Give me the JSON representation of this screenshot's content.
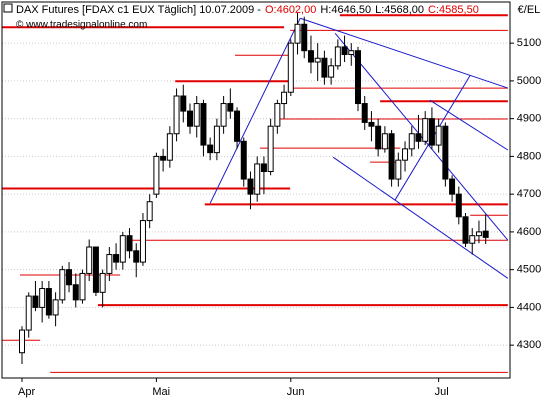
{
  "chart_data": {
    "type": "candlestick",
    "title": "DAX Futures [FDAX c1 EUX  Täglich] 10.07.2009 -",
    "ohlc_labels": [
      "O:4602,00",
      "H:4646,50",
      "L:4568,00",
      "C:4585,50"
    ],
    "watermark": "© www.tradesignalonline.com",
    "unit": "€/EL",
    "categories": [
      "Apr",
      null,
      null,
      null,
      null,
      null,
      null,
      null,
      null,
      null,
      null,
      null,
      null,
      null,
      null,
      null,
      null,
      null,
      null,
      null,
      "Mai",
      null,
      null,
      null,
      null,
      null,
      null,
      null,
      null,
      null,
      null,
      null,
      null,
      null,
      null,
      null,
      null,
      null,
      null,
      null,
      "Jun",
      null,
      null,
      null,
      null,
      null,
      null,
      null,
      null,
      null,
      null,
      null,
      null,
      null,
      null,
      null,
      null,
      null,
      null,
      null,
      null,
      null,
      "Jul",
      null,
      null,
      null,
      null,
      null,
      null,
      null
    ],
    "open": [
      4280,
      4340,
      4430,
      4400,
      4450,
      4380,
      4420,
      4500,
      4460,
      4420,
      4490,
      4560,
      4440,
      4490,
      4540,
      4520,
      4590,
      4550,
      4520,
      4630,
      4700,
      4800,
      4790,
      4860,
      4960,
      4920,
      4880,
      4940,
      4830,
      4810,
      4880,
      4940,
      4920,
      4840,
      4740,
      4700,
      4780,
      4760,
      4880,
      4940,
      4970,
      5100,
      5150,
      5080,
      5050,
      5060,
      5010,
      5040,
      5090,
      5070,
      5080,
      4940,
      4890,
      4880,
      4820,
      4860,
      4740,
      4790,
      4820,
      4860,
      4840,
      4900,
      4830,
      4880,
      4740,
      4700,
      4640,
      4570,
      4590,
      4602
    ],
    "high": [
      4350,
      4440,
      4470,
      4470,
      4470,
      4440,
      4510,
      4520,
      4490,
      4500,
      4580,
      4560,
      4500,
      4560,
      4570,
      4600,
      4610,
      4570,
      4650,
      4700,
      4810,
      4820,
      4880,
      4980,
      4990,
      4940,
      4960,
      4950,
      4850,
      4900,
      4960,
      4980,
      4930,
      4850,
      4760,
      4800,
      4800,
      4900,
      4950,
      4990,
      5110,
      5180,
      5170,
      5120,
      5100,
      5080,
      5060,
      5110,
      5120,
      5100,
      5090,
      4960,
      4920,
      4900,
      4880,
      4870,
      4810,
      4840,
      4880,
      4910,
      4920,
      4930,
      4900,
      4890,
      4750,
      4720,
      4650,
      4610,
      4630,
      4646.5
    ],
    "low": [
      4250,
      4320,
      4390,
      4360,
      4370,
      4350,
      4410,
      4440,
      4400,
      4410,
      4470,
      4430,
      4400,
      4470,
      4500,
      4500,
      4530,
      4480,
      4510,
      4610,
      4690,
      4760,
      4770,
      4840,
      4890,
      4860,
      4850,
      4800,
      4790,
      4790,
      4860,
      4900,
      4820,
      4720,
      4660,
      4680,
      4700,
      4750,
      4860,
      4900,
      4960,
      5070,
      5060,
      5020,
      5000,
      4990,
      4990,
      5030,
      5050,
      5040,
      4920,
      4870,
      4840,
      4800,
      4810,
      4720,
      4720,
      4760,
      4800,
      4820,
      4830,
      4820,
      4810,
      4720,
      4680,
      4620,
      4560,
      4540,
      4570,
      4568
    ],
    "close": [
      4340,
      4430,
      4400,
      4450,
      4380,
      4420,
      4500,
      4460,
      4420,
      4490,
      4560,
      4440,
      4490,
      4540,
      4520,
      4590,
      4550,
      4520,
      4630,
      4680,
      4800,
      4790,
      4860,
      4960,
      4920,
      4880,
      4940,
      4830,
      4810,
      4880,
      4940,
      4920,
      4840,
      4740,
      4700,
      4780,
      4760,
      4880,
      4940,
      4970,
      5100,
      5150,
      5080,
      5050,
      5060,
      5010,
      5040,
      5090,
      5070,
      5080,
      4940,
      4890,
      4880,
      4820,
      4860,
      4740,
      4790,
      4820,
      4860,
      4840,
      4900,
      4830,
      4880,
      4740,
      4700,
      4640,
      4570,
      4590,
      4600,
      4585.5
    ],
    "up_color": "#ffffff",
    "down_color": "#000000",
    "ylim": [
      4213,
      5209
    ],
    "yticks": [
      4300,
      4400,
      4500,
      4600,
      4700,
      4800,
      4900,
      5000,
      5100
    ],
    "level_color": "#e00000",
    "levels": [
      {
        "value": 5174,
        "from": 47.3,
        "to": 72.3,
        "thick": true
      },
      {
        "value": 5142,
        "from": -3,
        "to": 39,
        "thick": true
      },
      {
        "value": 4999,
        "from": 22.8,
        "to": 39.9,
        "thick": true
      },
      {
        "value": 4946,
        "from": 53.3,
        "to": 72.3,
        "thick": true
      },
      {
        "value": 4715,
        "from": -3,
        "to": 39.9,
        "thick": true
      },
      {
        "value": 4673,
        "from": 27.2,
        "to": 72.3,
        "thick": true
      },
      {
        "value": 4406,
        "from": 11.3,
        "to": 72.3,
        "thick": true
      },
      {
        "value": 5134,
        "from": 39.9,
        "to": 72.3,
        "thick": false
      },
      {
        "value": 5068,
        "from": 31.7,
        "to": 39.9,
        "thick": false
      },
      {
        "value": 4981,
        "from": 39.9,
        "to": 72.3,
        "thick": false
      },
      {
        "value": 4899,
        "from": 37.6,
        "to": 72.3,
        "thick": false
      },
      {
        "value": 4822,
        "from": 35.4,
        "to": 56.3,
        "thick": false
      },
      {
        "value": 4785,
        "from": 51.8,
        "to": 56.3,
        "thick": false
      },
      {
        "value": 4644,
        "from": 66.7,
        "to": 72.3,
        "thick": false
      },
      {
        "value": 4578,
        "from": 16,
        "to": 72.3,
        "thick": false
      },
      {
        "value": 4486,
        "from": -0.3,
        "to": 14.6,
        "thick": false
      },
      {
        "value": 4313,
        "from": -3,
        "to": 2.7,
        "thick": false
      },
      {
        "value": 4228,
        "from": 4.2,
        "to": 72.3,
        "thick": false
      }
    ],
    "trend_color": "#1a1acc",
    "trendlines": [
      {
        "from": [
          28,
          4676
        ],
        "to": [
          41.4,
          5166
        ]
      },
      {
        "from": [
          41.4,
          5166
        ],
        "to": [
          72.3,
          4981
        ]
      },
      {
        "from": [
          46.6,
          5126
        ],
        "to": [
          72.3,
          4578
        ]
      },
      {
        "from": [
          46.3,
          4798
        ],
        "to": [
          72.3,
          4477
        ]
      },
      {
        "from": [
          55.5,
          4684
        ],
        "to": [
          66.7,
          5015
        ]
      },
      {
        "from": [
          60.7,
          4949
        ],
        "to": [
          72.3,
          4817
        ]
      }
    ]
  }
}
